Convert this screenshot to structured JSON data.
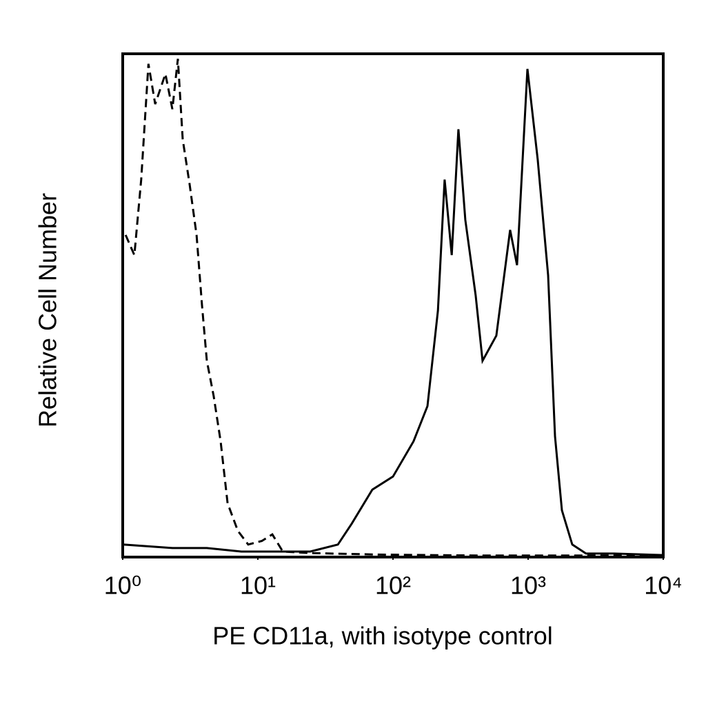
{
  "chart_data": {
    "type": "line",
    "x_label": "PE CD11a, with isotype control",
    "y_label": "Relative Cell Number",
    "xscale": "log",
    "xlim": [
      1,
      10000
    ],
    "xticks": [
      {
        "value": 1,
        "label": "10⁰"
      },
      {
        "value": 10,
        "label": "10¹"
      },
      {
        "value": 100,
        "label": "10²"
      },
      {
        "value": 1000,
        "label": "10³"
      },
      {
        "value": 10000,
        "label": "10⁴"
      }
    ],
    "ylim": [
      0,
      100
    ],
    "series": [
      {
        "color": "#000000",
        "linestyle": "dashed",
        "x": [
          1.05,
          1.22,
          1.37,
          1.55,
          1.74,
          2.07,
          2.33,
          2.56,
          2.78,
          3.13,
          3.52,
          3.86,
          4.19,
          4.71,
          5.3,
          5.97,
          7.11,
          8.48,
          10.7,
          12.8,
          15.3,
          24.4,
          79,
          460,
          10000
        ],
        "values": [
          64,
          60,
          75,
          98,
          90,
          96,
          89,
          99,
          83,
          74,
          64,
          50,
          39,
          32,
          23,
          10.7,
          5.2,
          2.5,
          3.2,
          4.5,
          1.1,
          0.8,
          0.5,
          0.3,
          0.3
        ]
      },
      {
        "color": "#000000",
        "linestyle": "solid",
        "x": [
          1,
          2.33,
          4.19,
          7.55,
          13.6,
          24.4,
          39.1,
          49.4,
          70.3,
          100,
          142,
          180,
          215,
          241,
          272,
          305,
          343,
          409,
          460,
          582,
          736,
          828,
          988,
          1178,
          1406,
          1581,
          1778,
          2121,
          2683,
          4295,
          10000
        ],
        "values": [
          2.5,
          1.8,
          1.8,
          1.1,
          1.1,
          1.1,
          2.5,
          6.6,
          13.4,
          16,
          23,
          30,
          49,
          75,
          60,
          85,
          67,
          52,
          39,
          44,
          65,
          58,
          97,
          79,
          56,
          24,
          9.3,
          2.5,
          0.7,
          0.7,
          0.4
        ]
      }
    ]
  }
}
